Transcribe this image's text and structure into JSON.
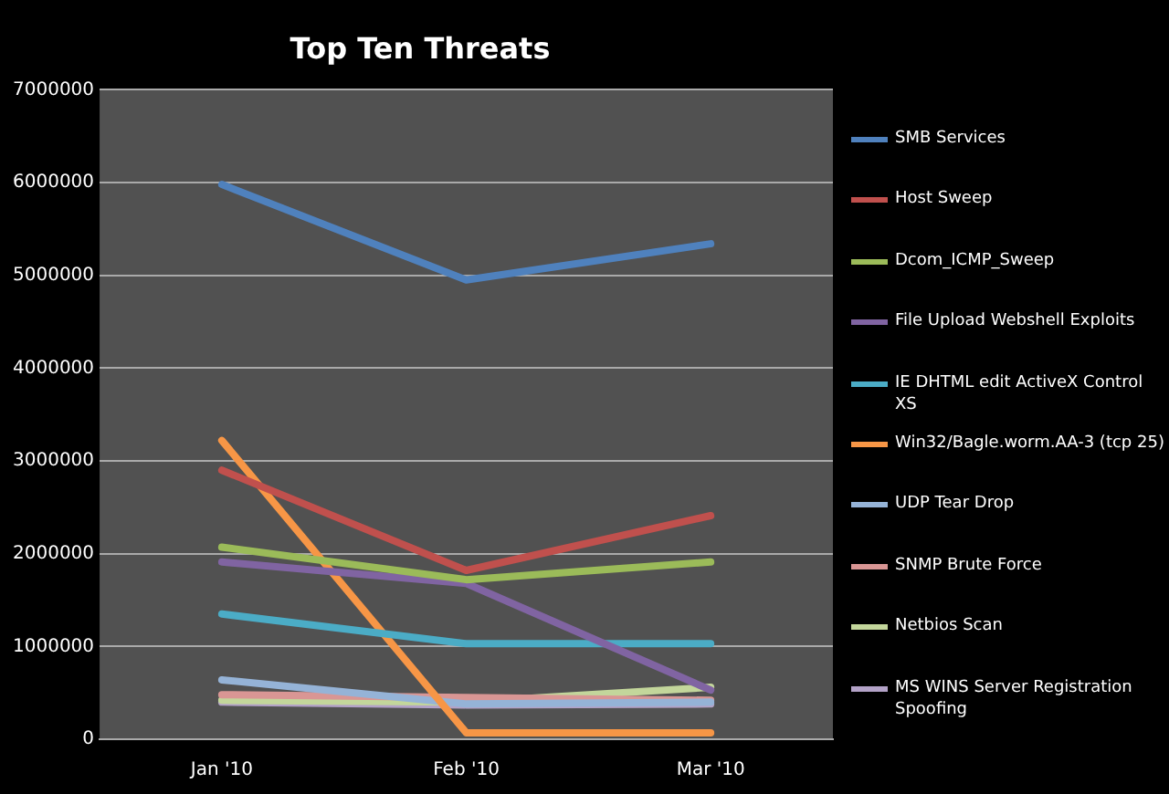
{
  "chart_data": {
    "type": "line",
    "title": "Top Ten Threats",
    "categories": [
      "Jan '10",
      "Feb '10",
      "Mar '10"
    ],
    "series": [
      {
        "name": "SMB Services",
        "color": "#4f81bd",
        "values": [
          5980000,
          4950000,
          5340000
        ]
      },
      {
        "name": "Host Sweep",
        "color": "#c0504d",
        "values": [
          2900000,
          1820000,
          2410000
        ]
      },
      {
        "name": "Dcom_ICMP_Sweep",
        "color": "#9bbb59",
        "values": [
          2070000,
          1720000,
          1910000
        ]
      },
      {
        "name": "File Upload Webshell Exploits",
        "color": "#8064a2",
        "values": [
          1910000,
          1680000,
          530000
        ]
      },
      {
        "name": "IE DHTML edit ActiveX Control XS",
        "color": "#4bacc6",
        "values": [
          1350000,
          1030000,
          1030000
        ]
      },
      {
        "name": "Win32/Bagle.worm.AA-3 (tcp 25)",
        "color": "#f79646",
        "values": [
          3220000,
          70000,
          70000
        ]
      },
      {
        "name": "UDP Tear Drop",
        "color": "#95b3d7",
        "values": [
          640000,
          380000,
          400000
        ]
      },
      {
        "name": "SNMP Brute Force",
        "color": "#d99694",
        "values": [
          480000,
          450000,
          420000
        ]
      },
      {
        "name": "Netbios Scan",
        "color": "#c3d69b",
        "values": [
          420000,
          400000,
          560000
        ]
      },
      {
        "name": "MS WINS Server Registration Spoofing",
        "color": "#b3a2c7",
        "values": [
          400000,
          370000,
          380000
        ]
      }
    ],
    "ylim": [
      0,
      7000000
    ],
    "yticks": [
      0,
      1000000,
      2000000,
      3000000,
      4000000,
      5000000,
      6000000,
      7000000
    ],
    "grid": "y",
    "legend": "right",
    "marker": "none",
    "line_style": "solid"
  }
}
